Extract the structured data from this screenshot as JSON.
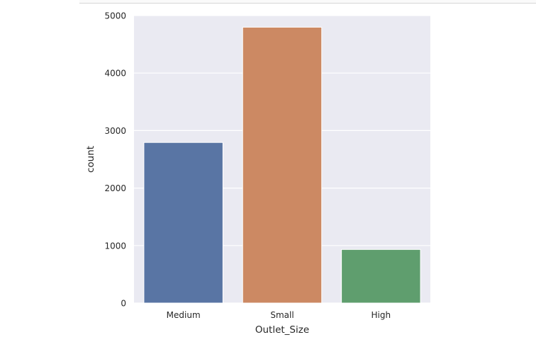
{
  "chart_data": {
    "type": "bar",
    "title": "",
    "xlabel": "Outlet_Size",
    "ylabel": "count",
    "categories": [
      "Medium",
      "Small",
      "High"
    ],
    "values": [
      2793,
      4798,
      932
    ],
    "colors": [
      "#5975a4",
      "#cc8963",
      "#5f9e6e"
    ],
    "ylim": [
      0,
      5000
    ],
    "yticks": [
      0,
      1000,
      2000,
      3000,
      4000,
      5000
    ],
    "grid": true,
    "background": "#eaeaf2",
    "grid_color": "#ffffff"
  }
}
